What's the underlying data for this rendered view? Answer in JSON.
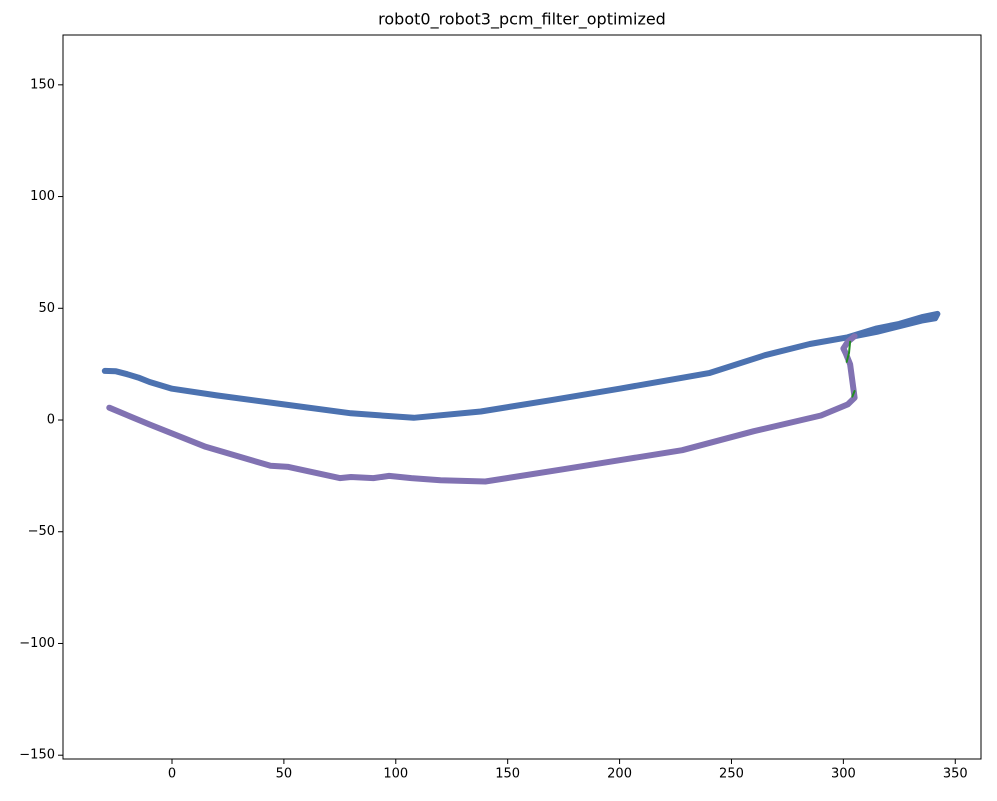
{
  "chart_data": {
    "type": "line",
    "title": "robot0_robot3_pcm_filter_optimized",
    "xlim": [
      -48.7,
      361.5
    ],
    "ylim": [
      -151.7,
      172.3
    ],
    "xticks": [
      0,
      50,
      100,
      150,
      200,
      250,
      300,
      350
    ],
    "yticks": [
      {
        "value": -150,
        "label": "−150"
      },
      {
        "value": -100,
        "label": "−100"
      },
      {
        "value": -50,
        "label": "−50"
      },
      0,
      50,
      100,
      150
    ],
    "grid": false,
    "series": [
      {
        "color": "#4c72b0",
        "width": 6,
        "x": [
          -30,
          -25,
          -20,
          -15,
          -10,
          0,
          20,
          50,
          80,
          108,
          138,
          170,
          200,
          240,
          265,
          285,
          302,
          315,
          325,
          335,
          342,
          341,
          335,
          325,
          315,
          305
        ],
        "values": [
          22,
          21.8,
          20.5,
          19,
          17,
          14,
          11,
          7,
          3,
          1,
          3.8,
          9,
          14,
          21,
          29,
          34,
          37,
          41,
          43,
          46,
          47.5,
          45.5,
          44.5,
          42,
          39.5,
          37.5
        ]
      },
      {
        "color": "#8172b2",
        "width": 6,
        "x": [
          -28,
          -10,
          15,
          44,
          52,
          75,
          80,
          90,
          97,
          107,
          120,
          140,
          175,
          200,
          228,
          260,
          290,
          302,
          305,
          303,
          301,
          300,
          302,
          305
        ],
        "values": [
          5.5,
          -2,
          -12,
          -20.5,
          -21,
          -26,
          -25.5,
          -26,
          -25,
          -26,
          -27,
          -27.5,
          -22,
          -18,
          -13.5,
          -5,
          2,
          7,
          10,
          25,
          30,
          32,
          35,
          37.5
        ]
      },
      {
        "color": "#228b22",
        "width": 2,
        "x": [
          301.5,
          302.5,
          303,
          null,
          304,
          305
        ],
        "values": [
          26,
          30,
          35,
          null,
          10.5,
          13
        ]
      }
    ]
  }
}
